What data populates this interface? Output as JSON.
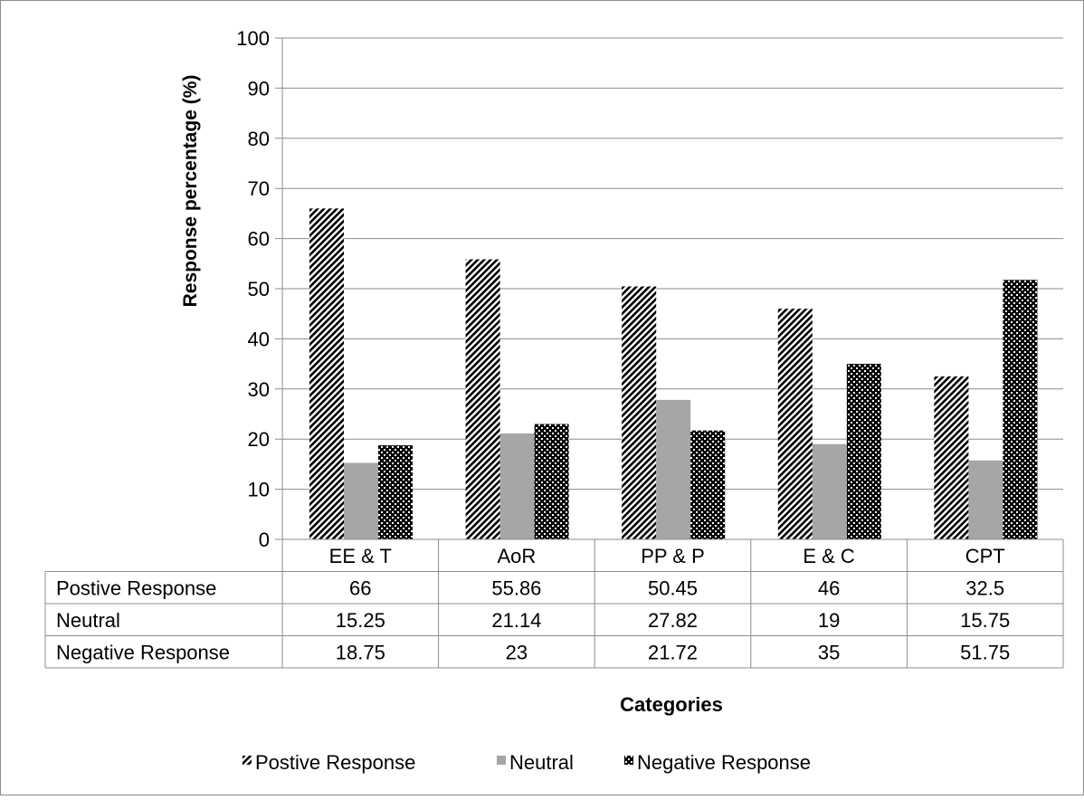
{
  "chart_data": {
    "type": "bar",
    "title": "",
    "xlabel": "Categories",
    "ylabel": "Response percentage (%)",
    "ylim": [
      0,
      100
    ],
    "ytick_step": 10,
    "grid": "horizontal",
    "legend_position": "bottom",
    "categories": [
      "EE & T",
      "AoR",
      "PP & P",
      "E & C",
      "CPT"
    ],
    "series": [
      {
        "name": "Postive Response",
        "values": [
          66,
          55.86,
          50.45,
          46,
          32.5
        ],
        "display": [
          "66",
          "55.86",
          "50.45",
          "46",
          "32.5"
        ],
        "pattern": "diagonal-stripes",
        "color": "#000000"
      },
      {
        "name": "Neutral",
        "values": [
          15.25,
          21.14,
          27.82,
          19,
          15.75
        ],
        "display": [
          "15.25",
          "21.14",
          "27.82",
          "19",
          "15.75"
        ],
        "pattern": "solid",
        "color": "#a6a6a6"
      },
      {
        "name": "Negative Response",
        "values": [
          18.75,
          23,
          21.72,
          35,
          51.75
        ],
        "display": [
          "18.75",
          "23",
          "21.72",
          "35",
          "51.75"
        ],
        "pattern": "checker",
        "color": "#000000"
      }
    ]
  }
}
